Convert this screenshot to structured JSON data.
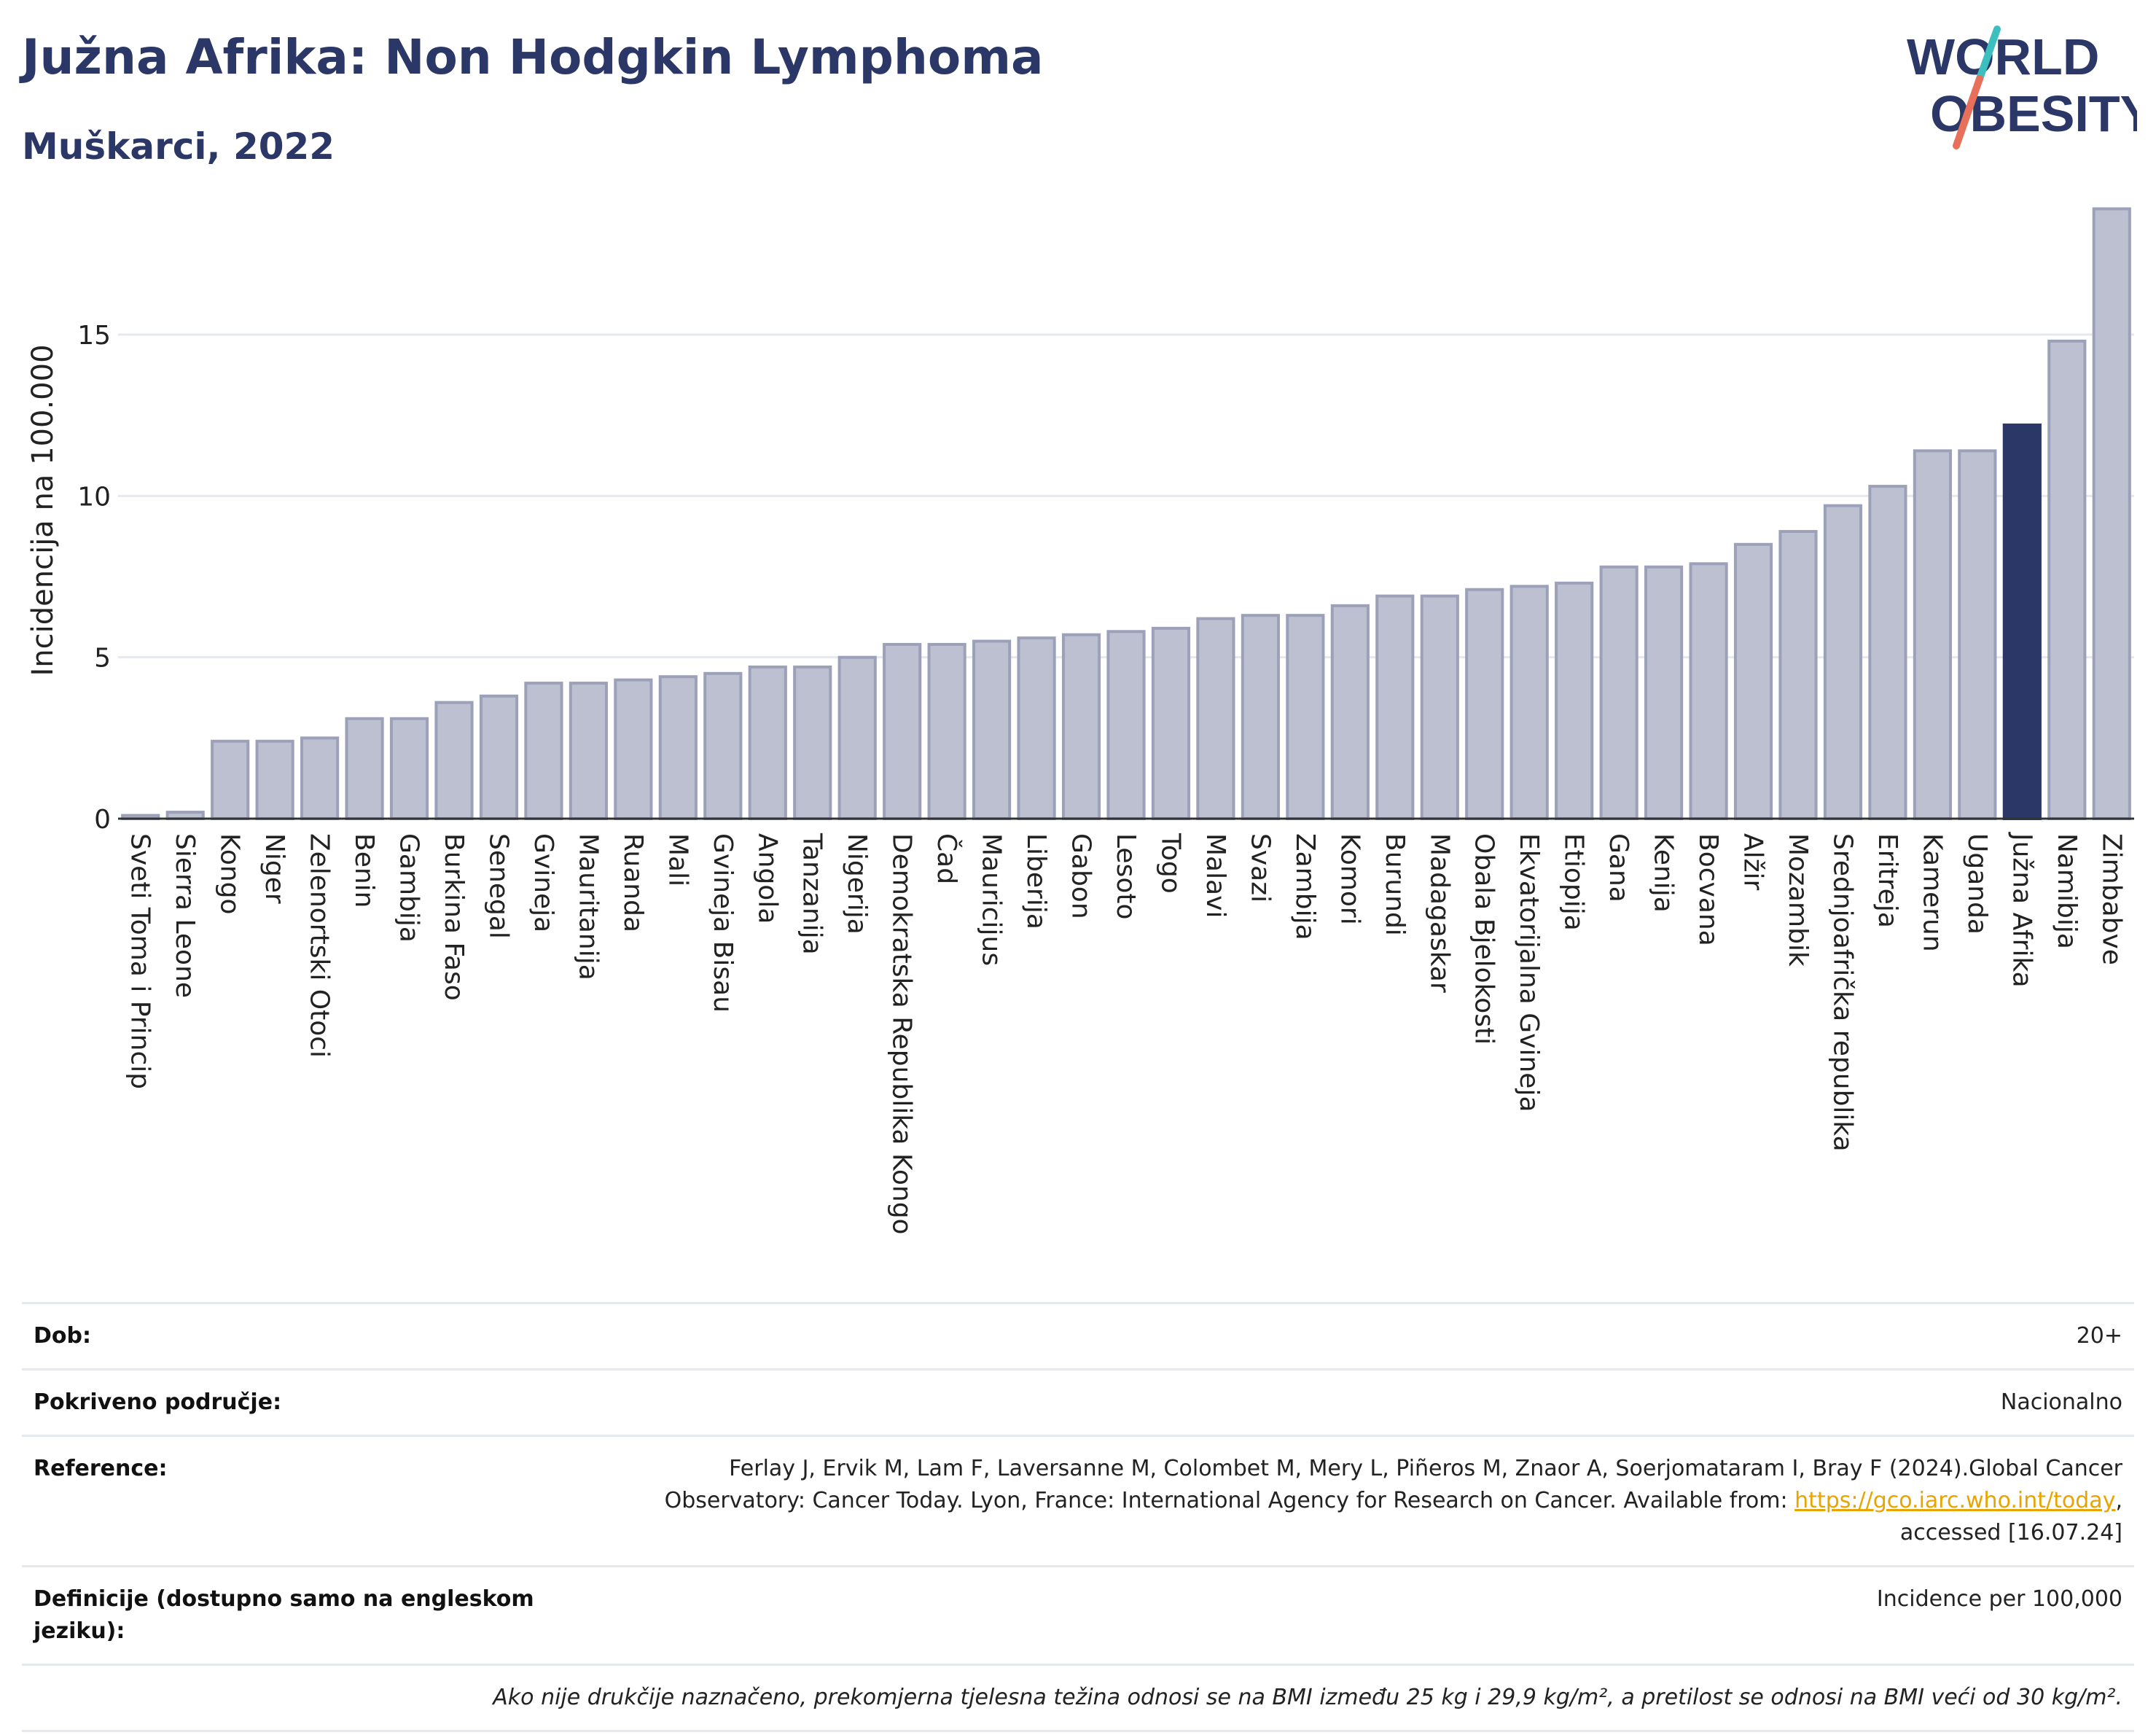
{
  "header": {
    "title": "Južna Afrika: Non Hodgkin Lymphoma",
    "subtitle": "Muškarci, 2022"
  },
  "logo": {
    "line1": "WORLD",
    "line2": "OBESITY",
    "colors": {
      "text": "#2b3766",
      "slash_top": "#3dbfbf",
      "slash_bottom": "#e8705a"
    }
  },
  "colors": {
    "bar": "#bcc0d0",
    "bar_stroke": "#9ca1b9",
    "highlight": "#2b3766",
    "grid": "#e6e8ef"
  },
  "chart_data": {
    "type": "bar",
    "ylabel": "Incidencija na 100.000",
    "ylim": [
      0,
      19
    ],
    "yticks": [
      0,
      5,
      10,
      15
    ],
    "grid": true,
    "highlight": "Južna Afrika",
    "categories": [
      "Sveti Toma i Princip",
      "Sierra Leone",
      "Kongo",
      "Niger",
      "Zelenortski Otoci",
      "Benin",
      "Gambija",
      "Burkina Faso",
      "Senegal",
      "Gvineja",
      "Mauritanija",
      "Ruanda",
      "Mali",
      "Gvineja Bisau",
      "Angola",
      "Tanzanija",
      "Nigerija",
      "Demokratska Republika Kongo",
      "Čad",
      "Mauricijus",
      "Liberija",
      "Gabon",
      "Lesoto",
      "Togo",
      "Malavi",
      "Svazi",
      "Zambija",
      "Komori",
      "Burundi",
      "Madagaskar",
      "Obala Bjelokosti",
      "Ekvatorijalna Gvineja",
      "Etiopija",
      "Gana",
      "Kenija",
      "Bocvana",
      "Alžir",
      "Mozambik",
      "Srednjoafrička republika",
      "Eritreja",
      "Kamerun",
      "Uganda",
      "Južna Afrika",
      "Namibija",
      "Zimbabve"
    ],
    "values": [
      0.1,
      0.2,
      2.4,
      2.4,
      2.5,
      3.1,
      3.1,
      3.6,
      3.8,
      4.2,
      4.2,
      4.3,
      4.4,
      4.5,
      4.7,
      4.7,
      5.0,
      5.4,
      5.4,
      5.5,
      5.6,
      5.7,
      5.8,
      5.9,
      6.2,
      6.3,
      6.3,
      6.6,
      6.9,
      6.9,
      7.1,
      7.2,
      7.3,
      7.8,
      7.8,
      7.9,
      8.5,
      8.9,
      9.7,
      10.3,
      11.4,
      11.4,
      12.2,
      14.8,
      18.9
    ]
  },
  "info": {
    "dob_label": "Dob:",
    "dob_value": "20+",
    "coverage_label": "Pokriveno područje:",
    "coverage_value": "Nacionalno",
    "reference_label": "Reference:",
    "reference_line1": "Ferlay J, Ervik M, Lam F, Laversanne M, Colombet M, Mery L, Piñeros M, Znaor A, Soerjomataram I, Bray F (2024).Global Cancer",
    "reference_line2": "Observatory: Cancer Today. Lyon, France: International Agency for Research on Cancer. Available from: ",
    "reference_link": "https://gco.iarc.who.int/today",
    "reference_line2_end": ",",
    "reference_line3": "accessed [16.07.24]",
    "definitions_label": "Definicije (dostupno samo na engleskom jeziku):",
    "definitions_value": "Incidence per 100,000",
    "note": "Ako nije drukčije naznačeno, prekomjerna tjelesna težina odnosi se na BMI između 25 kg i 29,9 kg/m², a pretilost se odnosi na BMI veći od 30 kg/m²."
  }
}
